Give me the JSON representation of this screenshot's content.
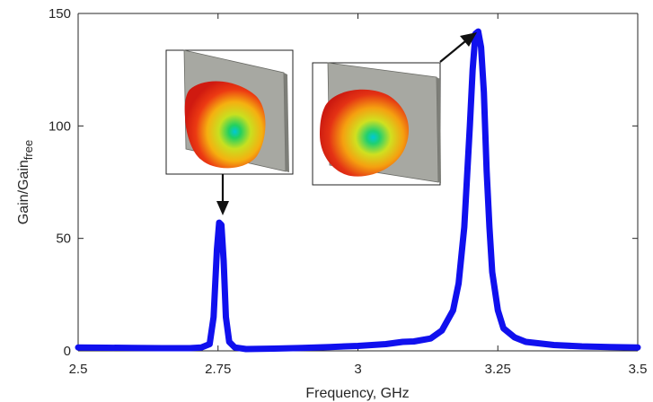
{
  "chart_data": {
    "type": "line",
    "xlabel": "Frequency, GHz",
    "ylabel": "Gain/Gain",
    "ylabel_subscript": "free",
    "xlim": [
      2.5,
      3.5
    ],
    "ylim": [
      0,
      150
    ],
    "xticks": [
      2.5,
      2.75,
      3,
      3.25,
      3.5
    ],
    "xtick_labels": [
      "2.5",
      "2.75",
      "3",
      "3.25",
      "3.5"
    ],
    "yticks": [
      0,
      50,
      100,
      150
    ],
    "ytick_labels": [
      "0",
      "50",
      "100",
      "150"
    ],
    "grid": false,
    "line_color": "#1010ee",
    "series": [
      {
        "x": [
          2.5,
          2.55,
          2.6,
          2.65,
          2.7,
          2.72,
          2.735,
          2.742,
          2.748,
          2.752,
          2.756,
          2.76,
          2.764,
          2.77,
          2.78,
          2.8,
          2.85,
          2.9,
          2.95,
          3.0,
          3.05,
          3.08,
          3.1,
          3.13,
          3.15,
          3.17,
          3.18,
          3.19,
          3.2,
          3.205,
          3.21,
          3.215,
          3.22,
          3.225,
          3.23,
          3.235,
          3.24,
          3.25,
          3.26,
          3.28,
          3.3,
          3.35,
          3.4,
          3.45,
          3.5
        ],
        "y": [
          1.5,
          1.4,
          1.3,
          1.2,
          1.2,
          1.5,
          3,
          15,
          45,
          57,
          56,
          40,
          15,
          4,
          1.5,
          0.8,
          1.0,
          1.3,
          1.7,
          2.2,
          3.0,
          4.0,
          4.2,
          5.5,
          9,
          18,
          30,
          55,
          100,
          125,
          141,
          142,
          135,
          115,
          80,
          55,
          35,
          18,
          10,
          6,
          4,
          2.6,
          2.0,
          1.7,
          1.5
        ]
      }
    ],
    "annotations": [
      {
        "type": "inset-image",
        "description": "3D radiation pattern near reflector plate",
        "points_to": [
          2.752,
          57
        ]
      },
      {
        "type": "inset-image",
        "description": "3D radiation pattern near reflector plate",
        "points_to": [
          3.21,
          142
        ]
      }
    ]
  }
}
